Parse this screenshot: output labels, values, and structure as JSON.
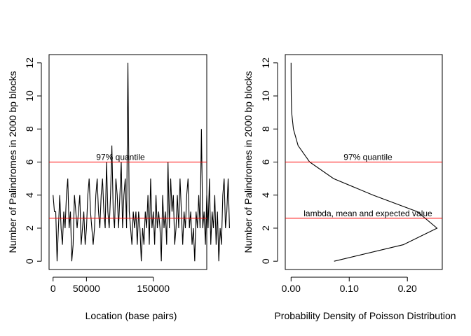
{
  "chart_data": [
    {
      "type": "line",
      "xlabel": "Location (base pairs)",
      "ylabel": "Number of Palindromes in 2000 bp blocks",
      "xlim": [
        -6000,
        230000
      ],
      "ylim": [
        -0.5,
        12.5
      ],
      "x_ticks": [
        0,
        50000,
        150000
      ],
      "x_tick_labels": [
        "0",
        "50000",
        "150000"
      ],
      "y_ticks": [
        0,
        2,
        4,
        6,
        8,
        10,
        12
      ],
      "y_tick_labels": [
        "0",
        "2",
        "4",
        "6",
        "8",
        "10",
        "12"
      ],
      "grid": false,
      "block_size": 2000,
      "series": [
        {
          "color": "#000000",
          "values": [
            4,
            3,
            3,
            0,
            2,
            4,
            2,
            1,
            3,
            2,
            4,
            5,
            2,
            3,
            0,
            1,
            4,
            3,
            2,
            3,
            4,
            1,
            2,
            3,
            1,
            2,
            4,
            5,
            3,
            2,
            1,
            2,
            4,
            5,
            3,
            2,
            4,
            5,
            3,
            2,
            6,
            3,
            2,
            4,
            7,
            3,
            2,
            5,
            4,
            2,
            4,
            6,
            2,
            4,
            5,
            2,
            12,
            3,
            2,
            1,
            3,
            2,
            3,
            1,
            3,
            2,
            0,
            2,
            1,
            3,
            2,
            4,
            1,
            5,
            2,
            3,
            1,
            4,
            2,
            3,
            2,
            0,
            4,
            2,
            3,
            1,
            6,
            2,
            5,
            3,
            4,
            1,
            2,
            4,
            2,
            5,
            3,
            1,
            3,
            2,
            4,
            5,
            2,
            3,
            1,
            2,
            0,
            3,
            2,
            4,
            2,
            8,
            2,
            3,
            1,
            4,
            2,
            5,
            1,
            3,
            2,
            4,
            1,
            3,
            0,
            2,
            1,
            4,
            5,
            2,
            3,
            5,
            2
          ]
        }
      ],
      "hlines": [
        {
          "y": 6,
          "color": "#ff0000",
          "label": "97% quantile"
        },
        {
          "y": 2.6,
          "color": "#ff0000"
        }
      ]
    },
    {
      "type": "line",
      "xlabel": "Probability Density of Poisson Distribution",
      "ylabel": "Number of Palindromes in 2000 bp blocks",
      "xlim": [
        -0.01,
        0.26
      ],
      "ylim": [
        -0.5,
        12.5
      ],
      "x_ticks": [
        0,
        0.1,
        0.2
      ],
      "x_tick_labels": [
        "0.00",
        "0.10",
        "0.20"
      ],
      "y_ticks": [
        0,
        2,
        4,
        6,
        8,
        10,
        12
      ],
      "y_tick_labels": [
        "0",
        "2",
        "4",
        "6",
        "8",
        "10",
        "12"
      ],
      "grid": false,
      "series": [
        {
          "color": "#000000",
          "x": [
            0.074,
            0.193,
            0.251,
            0.217,
            0.141,
            0.073,
            0.032,
            0.012,
            0.004,
            0.001,
            0.0003,
            6e-05,
            1e-05
          ],
          "y": [
            0,
            1,
            2,
            3,
            4,
            5,
            6,
            7,
            8,
            9,
            10,
            11,
            12
          ]
        }
      ],
      "hlines": [
        {
          "y": 6,
          "color": "#ff0000",
          "label": "97% quantile"
        },
        {
          "y": 2.6,
          "color": "#ff0000",
          "label": "lambda, mean and expected value"
        }
      ]
    }
  ]
}
